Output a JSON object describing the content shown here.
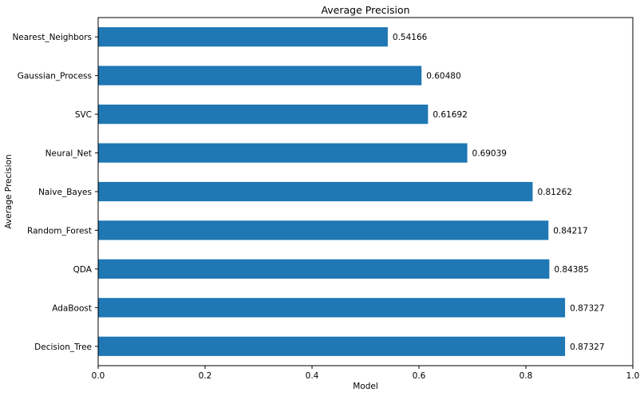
{
  "chart_data": {
    "type": "bar",
    "orientation": "horizontal",
    "title": "Average Precision",
    "xlabel": "Model",
    "ylabel": "Average Precision",
    "xlim": [
      0,
      1
    ],
    "xticks": [
      0,
      0.2,
      0.4,
      0.6,
      0.8,
      1
    ],
    "xtick_labels": [
      "0.0",
      "0.2",
      "0.4",
      "0.6",
      "0.8",
      "1.0"
    ],
    "grid": false,
    "bar_color": "#1f77b4",
    "categories": [
      "Nearest_Neighbors",
      "Gaussian_Process",
      "SVC",
      "Neural_Net",
      "Naive_Bayes",
      "Random_Forest",
      "QDA",
      "AdaBoost",
      "Decision_Tree"
    ],
    "values": [
      0.54166,
      0.6048,
      0.61692,
      0.69039,
      0.81262,
      0.84217,
      0.84385,
      0.87327,
      0.87327
    ],
    "value_labels": [
      "0.54166",
      "0.60480",
      "0.61692",
      "0.69039",
      "0.81262",
      "0.84217",
      "0.84385",
      "0.87327",
      "0.87327"
    ]
  }
}
